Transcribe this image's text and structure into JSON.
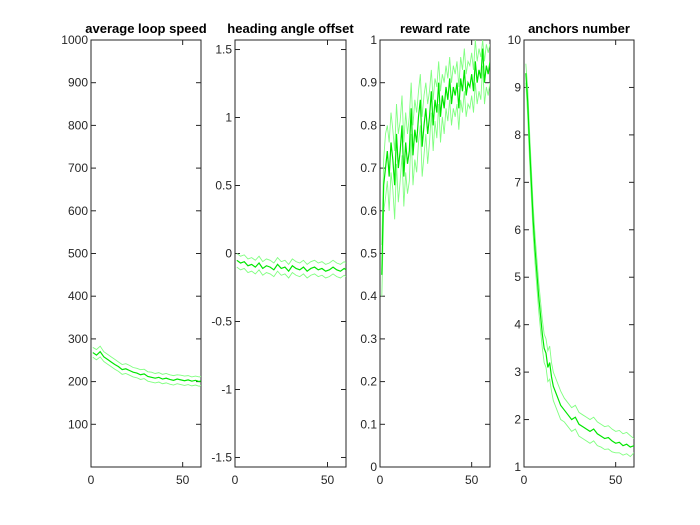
{
  "figure": {
    "background": "#ffffff"
  },
  "chart_data": [
    {
      "type": "line",
      "title": "average loop speed",
      "xlim": [
        0,
        60
      ],
      "ylim": [
        0,
        1000
      ],
      "xticks": [
        0,
        50
      ],
      "yticks": [
        100,
        200,
        300,
        400,
        500,
        600,
        700,
        800,
        900,
        1000
      ],
      "colors": {
        "mean": "#00e600",
        "bounds": "#80ff80"
      },
      "series": [
        {
          "role": "mean",
          "x": [
            1,
            3,
            5,
            7,
            9,
            11,
            13,
            15,
            17,
            19,
            21,
            23,
            25,
            27,
            29,
            31,
            33,
            35,
            37,
            39,
            41,
            43,
            45,
            47,
            49,
            51,
            53,
            55,
            57,
            59,
            60
          ],
          "y": [
            268,
            262,
            270,
            258,
            252,
            246,
            240,
            235,
            228,
            230,
            226,
            222,
            220,
            216,
            218,
            212,
            210,
            208,
            210,
            206,
            208,
            205,
            203,
            206,
            204,
            202,
            204,
            201,
            203,
            200,
            202
          ]
        },
        {
          "role": "upper",
          "x": [
            1,
            3,
            5,
            7,
            9,
            11,
            13,
            15,
            17,
            19,
            21,
            23,
            25,
            27,
            29,
            31,
            33,
            35,
            37,
            39,
            41,
            43,
            45,
            47,
            49,
            51,
            53,
            55,
            57,
            59,
            60
          ],
          "y": [
            280,
            275,
            283,
            270,
            264,
            258,
            252,
            246,
            240,
            242,
            238,
            233,
            231,
            228,
            229,
            223,
            222,
            219,
            221,
            217,
            219,
            216,
            214,
            216,
            215,
            213,
            214,
            211,
            213,
            211,
            212
          ]
        },
        {
          "role": "lower",
          "x": [
            1,
            3,
            5,
            7,
            9,
            11,
            13,
            15,
            17,
            19,
            21,
            23,
            25,
            27,
            29,
            31,
            33,
            35,
            37,
            39,
            41,
            43,
            45,
            47,
            49,
            51,
            53,
            55,
            57,
            59,
            60
          ],
          "y": [
            257,
            251,
            258,
            247,
            241,
            235,
            229,
            224,
            217,
            219,
            215,
            211,
            209,
            205,
            207,
            201,
            199,
            197,
            199,
            195,
            197,
            194,
            192,
            195,
            193,
            191,
            193,
            190,
            192,
            189,
            191
          ]
        }
      ]
    },
    {
      "type": "line",
      "title": "heading angle offset",
      "xlim": [
        0,
        60
      ],
      "ylim": [
        -1.57,
        1.57
      ],
      "xticks": [
        0,
        50
      ],
      "yticks": [
        -1.5,
        -1,
        -0.5,
        0,
        0.5,
        1,
        1.5
      ],
      "ytick_labels": [
        "-1.5",
        "-1",
        "-0.5",
        "0",
        "0.5",
        "1",
        "1.5"
      ],
      "colors": {
        "mean": "#00e600",
        "bounds": "#80ff80"
      },
      "series": [
        {
          "role": "mean",
          "x": [
            1,
            3,
            5,
            7,
            9,
            11,
            13,
            15,
            17,
            19,
            21,
            23,
            25,
            27,
            29,
            31,
            33,
            35,
            37,
            39,
            41,
            43,
            45,
            47,
            49,
            51,
            53,
            55,
            57,
            59,
            60
          ],
          "y": [
            -0.05,
            -0.07,
            -0.06,
            -0.09,
            -0.08,
            -0.1,
            -0.07,
            -0.11,
            -0.09,
            -0.1,
            -0.12,
            -0.08,
            -0.11,
            -0.1,
            -0.13,
            -0.09,
            -0.11,
            -0.12,
            -0.1,
            -0.13,
            -0.11,
            -0.1,
            -0.12,
            -0.11,
            -0.13,
            -0.12,
            -0.1,
            -0.12,
            -0.13,
            -0.11,
            -0.12
          ]
        },
        {
          "role": "upper",
          "x": [
            1,
            3,
            5,
            7,
            9,
            11,
            13,
            15,
            17,
            19,
            21,
            23,
            25,
            27,
            29,
            31,
            33,
            35,
            37,
            39,
            41,
            43,
            45,
            47,
            49,
            51,
            53,
            55,
            57,
            59,
            60
          ],
          "y": [
            0.0,
            -0.02,
            -0.01,
            -0.04,
            -0.03,
            -0.05,
            -0.02,
            -0.06,
            -0.04,
            -0.05,
            -0.07,
            -0.03,
            -0.06,
            -0.05,
            -0.08,
            -0.04,
            -0.06,
            -0.07,
            -0.05,
            -0.08,
            -0.06,
            -0.05,
            -0.07,
            -0.06,
            -0.08,
            -0.07,
            -0.05,
            -0.07,
            -0.08,
            -0.06,
            -0.07
          ]
        },
        {
          "role": "lower",
          "x": [
            1,
            3,
            5,
            7,
            9,
            11,
            13,
            15,
            17,
            19,
            21,
            23,
            25,
            27,
            29,
            31,
            33,
            35,
            37,
            39,
            41,
            43,
            45,
            47,
            49,
            51,
            53,
            55,
            57,
            59,
            60
          ],
          "y": [
            -0.1,
            -0.12,
            -0.11,
            -0.14,
            -0.13,
            -0.15,
            -0.12,
            -0.16,
            -0.14,
            -0.15,
            -0.17,
            -0.13,
            -0.16,
            -0.15,
            -0.18,
            -0.14,
            -0.16,
            -0.17,
            -0.15,
            -0.18,
            -0.16,
            -0.15,
            -0.17,
            -0.16,
            -0.18,
            -0.17,
            -0.15,
            -0.17,
            -0.18,
            -0.16,
            -0.17
          ]
        }
      ]
    },
    {
      "type": "line",
      "title": "reward rate",
      "xlim": [
        0,
        60
      ],
      "ylim": [
        0,
        1
      ],
      "xticks": [
        0,
        50
      ],
      "yticks": [
        0,
        0.1,
        0.2,
        0.3,
        0.4,
        0.5,
        0.6,
        0.7,
        0.8,
        0.9,
        1
      ],
      "ytick_labels": [
        "0",
        "0.1",
        "0.2",
        "0.3",
        "0.4",
        "0.5",
        "0.6",
        "0.7",
        "0.8",
        "0.9",
        "1"
      ],
      "colors": {
        "mean": "#00e600",
        "bounds": "#80ff80"
      },
      "series": [
        {
          "role": "mean",
          "x": [
            1,
            2,
            3,
            4,
            5,
            6,
            7,
            8,
            9,
            10,
            11,
            12,
            13,
            14,
            15,
            16,
            17,
            18,
            19,
            20,
            21,
            22,
            23,
            24,
            25,
            26,
            27,
            28,
            29,
            30,
            31,
            32,
            33,
            34,
            35,
            36,
            37,
            38,
            39,
            40,
            41,
            42,
            43,
            44,
            45,
            46,
            47,
            48,
            49,
            50,
            51,
            52,
            53,
            54,
            55,
            56,
            57,
            58,
            59,
            60
          ],
          "y": [
            0.45,
            0.66,
            0.7,
            0.74,
            0.68,
            0.76,
            0.72,
            0.66,
            0.78,
            0.7,
            0.74,
            0.8,
            0.68,
            0.76,
            0.71,
            0.74,
            0.84,
            0.73,
            0.79,
            0.76,
            0.82,
            0.86,
            0.75,
            0.8,
            0.84,
            0.78,
            0.82,
            0.88,
            0.8,
            0.86,
            0.83,
            0.9,
            0.82,
            0.87,
            0.84,
            0.89,
            0.86,
            0.91,
            0.85,
            0.89,
            0.87,
            0.9,
            0.84,
            0.91,
            0.88,
            0.93,
            0.87,
            0.9,
            0.89,
            0.92,
            0.88,
            0.95,
            0.9,
            0.93,
            0.91,
            0.98,
            0.9,
            0.94,
            0.92,
            0.95
          ]
        },
        {
          "role": "upper",
          "x": [
            1,
            2,
            3,
            4,
            5,
            6,
            7,
            8,
            9,
            10,
            11,
            12,
            13,
            14,
            15,
            16,
            17,
            18,
            19,
            20,
            21,
            22,
            23,
            24,
            25,
            26,
            27,
            28,
            29,
            30,
            31,
            32,
            33,
            34,
            35,
            36,
            37,
            38,
            39,
            40,
            41,
            42,
            43,
            44,
            45,
            46,
            47,
            48,
            49,
            50,
            51,
            52,
            53,
            54,
            55,
            56,
            57,
            58,
            59,
            60
          ],
          "y": [
            0.52,
            0.72,
            0.78,
            0.8,
            0.76,
            0.83,
            0.79,
            0.74,
            0.85,
            0.78,
            0.81,
            0.87,
            0.76,
            0.83,
            0.78,
            0.82,
            0.9,
            0.8,
            0.86,
            0.83,
            0.88,
            0.92,
            0.82,
            0.87,
            0.9,
            0.85,
            0.88,
            0.93,
            0.86,
            0.91,
            0.89,
            0.95,
            0.88,
            0.92,
            0.9,
            0.94,
            0.91,
            0.96,
            0.9,
            0.94,
            0.92,
            0.95,
            0.89,
            0.96,
            0.93,
            0.98,
            0.92,
            0.95,
            0.94,
            0.97,
            0.93,
            1.0,
            0.95,
            0.98,
            0.96,
            1.0,
            0.95,
            0.99,
            0.97,
            0.99
          ]
        },
        {
          "role": "lower",
          "x": [
            1,
            2,
            3,
            4,
            5,
            6,
            7,
            8,
            9,
            10,
            11,
            12,
            13,
            14,
            15,
            16,
            17,
            18,
            19,
            20,
            21,
            22,
            23,
            24,
            25,
            26,
            27,
            28,
            29,
            30,
            31,
            32,
            33,
            34,
            35,
            36,
            37,
            38,
            39,
            40,
            41,
            42,
            43,
            44,
            45,
            46,
            47,
            48,
            49,
            50,
            51,
            52,
            53,
            54,
            55,
            56,
            57,
            58,
            59,
            60
          ],
          "y": [
            0.4,
            0.6,
            0.63,
            0.67,
            0.6,
            0.69,
            0.65,
            0.58,
            0.71,
            0.62,
            0.67,
            0.73,
            0.61,
            0.69,
            0.64,
            0.67,
            0.78,
            0.66,
            0.72,
            0.69,
            0.76,
            0.8,
            0.68,
            0.73,
            0.78,
            0.71,
            0.76,
            0.83,
            0.74,
            0.81,
            0.77,
            0.85,
            0.76,
            0.82,
            0.78,
            0.84,
            0.81,
            0.86,
            0.8,
            0.84,
            0.82,
            0.85,
            0.79,
            0.86,
            0.83,
            0.88,
            0.82,
            0.85,
            0.84,
            0.87,
            0.83,
            0.9,
            0.85,
            0.88,
            0.86,
            0.94,
            0.85,
            0.89,
            0.87,
            0.9
          ]
        }
      ]
    },
    {
      "type": "line",
      "title": "anchors number",
      "xlim": [
        0,
        60
      ],
      "ylim": [
        1,
        10
      ],
      "xticks": [
        0,
        50
      ],
      "yticks": [
        1,
        2,
        3,
        4,
        5,
        6,
        7,
        8,
        9,
        10
      ],
      "colors": {
        "mean": "#00e600",
        "bounds": "#80ff80"
      },
      "series": [
        {
          "role": "mean",
          "x": [
            1,
            2,
            3,
            4,
            5,
            6,
            7,
            8,
            9,
            10,
            11,
            12,
            13,
            14,
            15,
            16,
            17,
            18,
            19,
            20,
            22,
            24,
            26,
            28,
            30,
            32,
            34,
            36,
            38,
            40,
            42,
            44,
            46,
            48,
            50,
            52,
            54,
            56,
            58,
            60
          ],
          "y": [
            9.3,
            8.7,
            7.8,
            7.0,
            6.2,
            5.6,
            5.1,
            4.6,
            4.2,
            3.8,
            3.5,
            3.4,
            3.1,
            3.2,
            2.9,
            2.7,
            2.6,
            2.5,
            2.4,
            2.3,
            2.2,
            2.1,
            2.0,
            2.05,
            1.9,
            1.85,
            1.8,
            1.75,
            1.8,
            1.7,
            1.65,
            1.6,
            1.62,
            1.55,
            1.5,
            1.52,
            1.45,
            1.48,
            1.42,
            1.45
          ]
        },
        {
          "role": "upper",
          "x": [
            1,
            2,
            3,
            4,
            5,
            6,
            7,
            8,
            9,
            10,
            11,
            12,
            13,
            14,
            15,
            16,
            17,
            18,
            19,
            20,
            22,
            24,
            26,
            28,
            30,
            32,
            34,
            36,
            38,
            40,
            42,
            44,
            46,
            48,
            50,
            52,
            54,
            56,
            58,
            60
          ],
          "y": [
            9.5,
            9.0,
            8.1,
            7.3,
            6.5,
            5.9,
            5.4,
            4.9,
            4.5,
            4.1,
            3.8,
            3.7,
            3.45,
            3.55,
            3.2,
            3.0,
            2.9,
            2.8,
            2.7,
            2.6,
            2.45,
            2.35,
            2.25,
            2.3,
            2.15,
            2.1,
            2.05,
            2.0,
            2.05,
            1.95,
            1.9,
            1.85,
            1.87,
            1.8,
            1.75,
            1.77,
            1.7,
            1.73,
            1.66,
            1.6
          ]
        },
        {
          "role": "lower",
          "x": [
            1,
            2,
            3,
            4,
            5,
            6,
            7,
            8,
            9,
            10,
            11,
            12,
            13,
            14,
            15,
            16,
            17,
            18,
            19,
            20,
            22,
            24,
            26,
            28,
            30,
            32,
            34,
            36,
            38,
            40,
            42,
            44,
            46,
            48,
            50,
            52,
            54,
            56,
            58,
            60
          ],
          "y": [
            9.1,
            8.4,
            7.5,
            6.7,
            5.9,
            5.3,
            4.8,
            4.3,
            3.9,
            3.5,
            3.2,
            3.1,
            2.8,
            2.85,
            2.6,
            2.4,
            2.3,
            2.2,
            2.1,
            2.0,
            1.95,
            1.85,
            1.75,
            1.8,
            1.65,
            1.6,
            1.55,
            1.5,
            1.55,
            1.45,
            1.42,
            1.37,
            1.38,
            1.32,
            1.3,
            1.3,
            1.25,
            1.28,
            1.22,
            1.3
          ]
        }
      ]
    }
  ]
}
